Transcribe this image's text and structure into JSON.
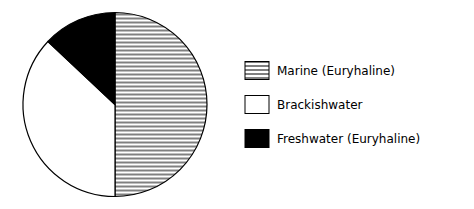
{
  "chart_data": {
    "type": "pie",
    "categories": [
      "Marine (Euryhaline)",
      "Brackishwater",
      "Freshwater (Euryhaline)"
    ],
    "values": [
      50,
      37,
      13
    ],
    "colors": [
      "white",
      "white",
      "black"
    ],
    "legend": "right"
  }
}
